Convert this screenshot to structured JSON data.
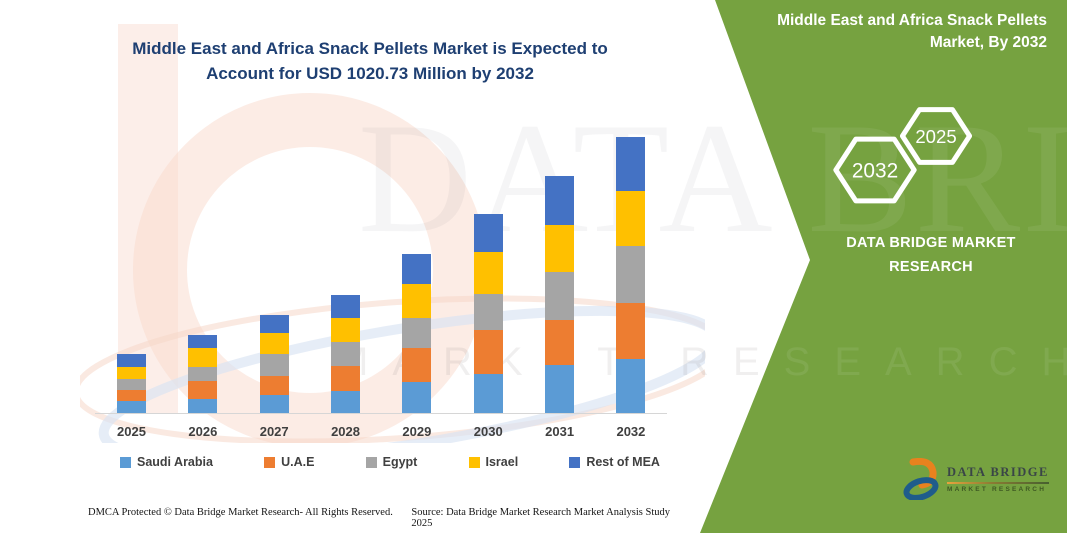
{
  "title": {
    "line1": "Middle East and Africa Snack Pellets Market is Expected to",
    "line2": "Account for USD 1020.73 Million by 2032"
  },
  "side_panel": {
    "heading": "Middle East and Africa Snack Pellets Market, By 2032",
    "badge_end_year": "2032",
    "badge_start_year": "2025",
    "brand": "DATA BRIDGE MARKET RESEARCH"
  },
  "logo": {
    "name": "DATA BRIDGE",
    "tagline": "MARKET RESEARCH"
  },
  "watermark": {
    "big_text": "DATA BRIDGE",
    "row_text": "MARKET RESEARCH"
  },
  "footer": {
    "dmca": "DMCA Protected © Data Bridge Market Research-  All Rights Reserved.",
    "source": "Source: Data Bridge Market Research  Market Analysis Study 2025"
  },
  "colors": {
    "panel_green": "#76A240",
    "title_navy": "#1E3F72",
    "axis_text": "#3F3F3F",
    "axis_line": "#D6D6D6"
  },
  "chart_data": {
    "type": "bar",
    "stacked": true,
    "title": "Middle East and Africa Snack Pellets Market is Expected to Account for USD 1020.73 Million by 2032",
    "unit": "USD Million",
    "xlabel": "",
    "ylabel": "",
    "ylim": [
      0,
      1020.73
    ],
    "grid": false,
    "legend_position": "bottom",
    "categories": [
      "2025",
      "2026",
      "2027",
      "2028",
      "2029",
      "2030",
      "2031",
      "2032"
    ],
    "series": [
      {
        "name": "Saudi Arabia",
        "color": "#5B9BD5",
        "values": [
          43.3,
          51.8,
          66.6,
          82.5,
          113.5,
          144.2,
          176.4,
          200.8
        ]
      },
      {
        "name": "U.A.E",
        "color": "#ED7D31",
        "values": [
          43.3,
          67.7,
          71.4,
          92.5,
          126.9,
          163.8,
          169.0,
          206.0
        ]
      },
      {
        "name": "Egypt",
        "color": "#A5A5A5",
        "values": [
          39.6,
          49.2,
          80.3,
          86.2,
          111.0,
          132.0,
          176.4,
          209.7
        ]
      },
      {
        "name": "Israel",
        "color": "#FFC000",
        "values": [
          45.5,
          71.4,
          77.7,
          89.9,
          125.7,
          154.2,
          174.9,
          204.5
        ]
      },
      {
        "name": "Rest of MEA",
        "color": "#4472C4",
        "values": [
          47.0,
          48.0,
          66.6,
          84.0,
          111.0,
          141.6,
          178.6,
          199.7
        ]
      }
    ],
    "totals": [
      218.7,
      288.1,
      362.6,
      435.1,
      588.1,
      735.8,
      875.3,
      1020.73
    ]
  }
}
